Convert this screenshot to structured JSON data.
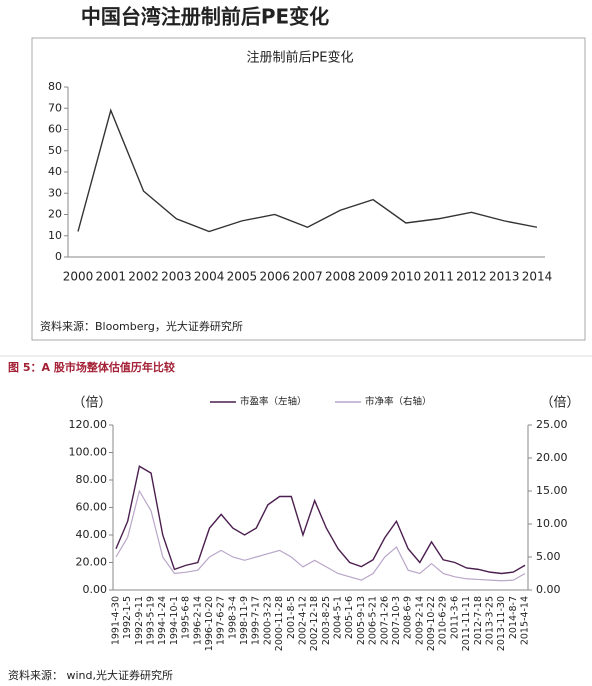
{
  "header": {
    "title": "中国台湾注册制前后PE变化"
  },
  "chart_data": [
    {
      "type": "line",
      "title": "注册制前后PE变化",
      "categories": [
        "2000",
        "2001",
        "2002",
        "2003",
        "2004",
        "2005",
        "2006",
        "2007",
        "2008",
        "2009",
        "2010",
        "2011",
        "2012",
        "2013",
        "2014"
      ],
      "values": [
        12,
        69,
        31,
        18,
        12,
        17,
        20,
        14,
        22,
        27,
        16,
        18,
        21,
        17,
        14
      ],
      "color": "#333333",
      "ylim": [
        0,
        80
      ],
      "yticks": [
        0,
        10,
        20,
        30,
        40,
        50,
        60,
        70,
        80
      ],
      "grid": false,
      "source": "资料来源：Bloomberg，光大证券研究所"
    },
    {
      "type": "line",
      "title": "图 5：A 股市场整体估值历年比较",
      "y_label": "（倍）",
      "y2_label": "（倍）",
      "categories": [
        "1991-4-30",
        "1992-1-5",
        "1992-9-11",
        "1993-5-19",
        "1994-1-24",
        "1994-10-1",
        "1995-6-8",
        "1996-2-14",
        "1996-10-20",
        "1997-6-27",
        "1998-3-4",
        "1998-11-9",
        "1999-7-17",
        "2000-3-23",
        "2000-11-28",
        "2001-8-5",
        "2002-4-12",
        "2002-12-18",
        "2003-8-25",
        "2004-5-1",
        "2005-1-6",
        "2005-9-13",
        "2006-5-21",
        "2007-1-26",
        "2007-10-3",
        "2008-6-9",
        "2009-2-14",
        "2009-10-22",
        "2010-6-29",
        "2011-3-6",
        "2011-11-11",
        "2012-7-18",
        "2013-3-25",
        "2013-11-30",
        "2014-8-7",
        "2015-4-14"
      ],
      "series": [
        {
          "name": "市盈率（左轴）",
          "color": "#4b1f4f",
          "values": [
            30,
            50,
            90,
            85,
            40,
            15,
            18,
            20,
            45,
            55,
            45,
            40,
            45,
            62,
            68,
            68,
            40,
            65,
            45,
            30,
            20,
            17,
            22,
            38,
            50,
            30,
            20,
            35,
            22,
            20,
            16,
            15,
            13,
            12,
            13,
            18
          ]
        },
        {
          "name": "市净率（右轴）",
          "color": "#b9a6c9",
          "axis": "y2",
          "values": [
            5,
            8,
            15,
            12,
            5,
            2.5,
            2.7,
            3,
            5,
            6,
            5,
            4.5,
            5,
            5.5,
            6,
            5,
            3.5,
            4.5,
            3.5,
            2.5,
            2,
            1.5,
            2.5,
            5,
            6.5,
            3,
            2.5,
            4,
            2.5,
            2,
            1.7,
            1.6,
            1.5,
            1.4,
            1.5,
            2.5
          ]
        }
      ],
      "ylim": [
        0,
        120
      ],
      "yticks": [
        {
          "value": 0,
          "label": "0.00"
        },
        {
          "value": 20,
          "label": "20.00"
        },
        {
          "value": 40,
          "label": "40.00"
        },
        {
          "value": 60,
          "label": "60.00"
        },
        {
          "value": 80,
          "label": "80.00"
        },
        {
          "value": 100,
          "label": "100.00"
        },
        {
          "value": 120,
          "label": "120.00"
        }
      ],
      "y2lim": [
        0,
        25
      ],
      "y2ticks": [
        {
          "value": 0,
          "label": "0.00"
        },
        {
          "value": 5,
          "label": "5.00"
        },
        {
          "value": 10,
          "label": "10.00"
        },
        {
          "value": 15,
          "label": "15.00"
        },
        {
          "value": 20,
          "label": "20.00"
        },
        {
          "value": 25,
          "label": "25.00"
        }
      ],
      "grid": false,
      "source": "资料来源： wind,光大证券研究所"
    }
  ]
}
